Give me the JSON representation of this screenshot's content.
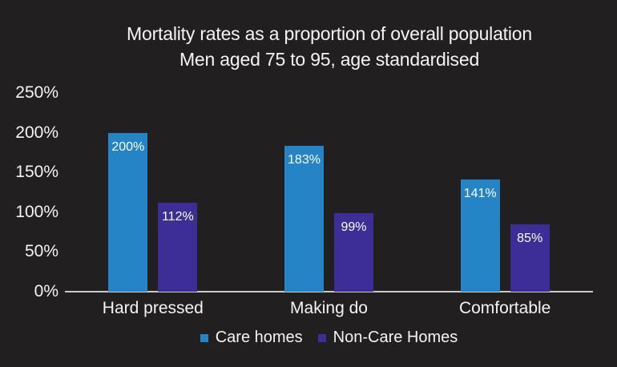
{
  "title": {
    "line1": "Mortality rates as a proportion of overall population",
    "line2": "Men aged 75 to 95, age standardised"
  },
  "colors": {
    "background": "#221F20",
    "text": "#F6F4F2",
    "axis_line": "#C9C9C9",
    "care_homes_blue": "#2484C6",
    "non_care_homes_purple": "#3D2D97",
    "bar_label_text": "#FFFFFF"
  },
  "chart_data": {
    "type": "bar",
    "title": "Mortality rates as a proportion of overall population — Men aged 75 to 95, age standardised",
    "categories": [
      "Hard pressed",
      "Making do",
      "Comfortable"
    ],
    "series": [
      {
        "name": "Care homes",
        "color": "#2484C6",
        "values": [
          200,
          183,
          141
        ],
        "labels": [
          "200%",
          "183%",
          "141%"
        ]
      },
      {
        "name": "Non-Care Homes",
        "color": "#3D2D97",
        "values": [
          112,
          99,
          85
        ],
        "labels": [
          "112%",
          "99%",
          "85%"
        ]
      }
    ],
    "xlabel": "",
    "ylabel": "",
    "ylim": [
      0,
      250
    ],
    "yticks": [
      {
        "value": 0,
        "label": "0%"
      },
      {
        "value": 50,
        "label": "50%"
      },
      {
        "value": 100,
        "label": "100%"
      },
      {
        "value": 150,
        "label": "150%"
      },
      {
        "value": 200,
        "label": "200%"
      },
      {
        "value": 250,
        "label": "250%"
      }
    ],
    "grid": false,
    "legend_position": "bottom",
    "value_labels_position": "inside-top"
  },
  "legend": {
    "items": [
      {
        "label": "Care homes",
        "color": "#2484C6"
      },
      {
        "label": "Non-Care Homes",
        "color": "#3D2D97"
      }
    ]
  }
}
